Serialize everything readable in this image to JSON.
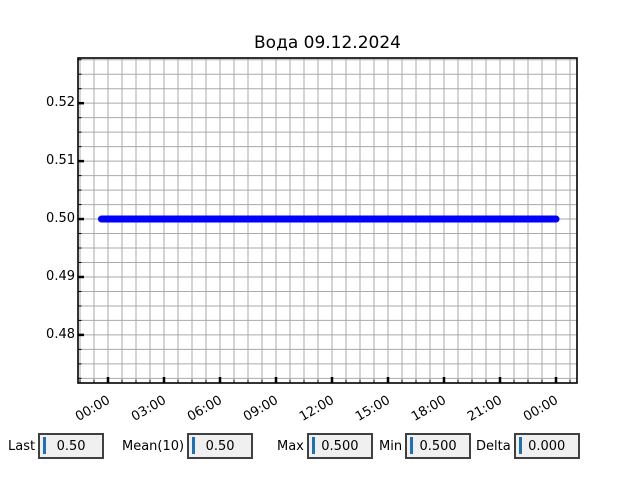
{
  "chart_data": {
    "type": "line",
    "title": "Вода 09.12.2024",
    "x_tick_hours": [
      0,
      3,
      6,
      9,
      12,
      15,
      18,
      21,
      24
    ],
    "x_tick_labels": [
      "00:00",
      "03:00",
      "06:00",
      "09:00",
      "12:00",
      "15:00",
      "18:00",
      "21:00",
      "00:00"
    ],
    "y_ticks": [
      0.48,
      0.49,
      0.5,
      0.51,
      0.52
    ],
    "y_tick_labels": [
      "0.48",
      "0.49",
      "0.50",
      "0.51",
      "0.52"
    ],
    "xlim_hours": [
      -1.607,
      25.125
    ],
    "ylim": [
      0.4717,
      0.5278
    ],
    "grid": true,
    "minor_x_step_hours": 0.75,
    "minor_y_step": 0.0025,
    "series": [
      {
        "name": "Вода",
        "color": "#0000ff",
        "y_constant": 0.5,
        "x_start_hour": -0.35,
        "x_end_hour": 24.0,
        "line_width": 7
      }
    ]
  },
  "stats": [
    {
      "label": "Last",
      "value": "0.50"
    },
    {
      "label": "Mean(10)",
      "value": "0.50"
    },
    {
      "label": "Max",
      "value": "0.500"
    },
    {
      "label": "Min",
      "value": "0.500"
    },
    {
      "label": "Delta",
      "value": "0.000"
    }
  ],
  "colors": {
    "line": "#0000ff",
    "grid": "#aaaaaa",
    "frame": "#000000",
    "entry_bg": "#f0f0f0",
    "caret": "#1d71b8"
  }
}
